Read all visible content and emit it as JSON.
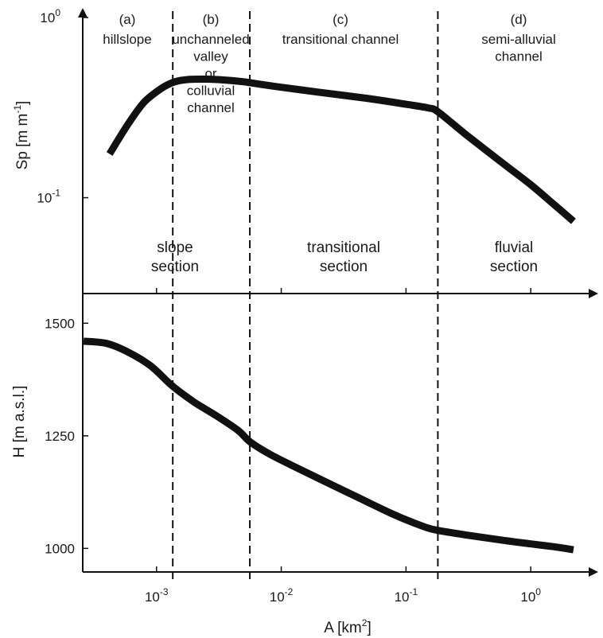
{
  "chart_data": {
    "type": "line",
    "xlabel": {
      "base": "A [km",
      "sup": "2",
      "end": "]"
    },
    "xscale": "log",
    "xticks": [
      {
        "base": "10",
        "exp": "-3"
      },
      {
        "base": "10",
        "exp": "-2"
      },
      {
        "base": "10",
        "exp": "-1"
      },
      {
        "base": "10",
        "exp": "0"
      }
    ],
    "xlim": [
      0.00026,
      3.0
    ],
    "boundaries": [
      0.00135,
      0.0056,
      0.18
    ],
    "zones": [
      {
        "id": "(a)",
        "lines": [
          "hillslope"
        ]
      },
      {
        "id": "(b)",
        "lines": [
          "unchanneled",
          "valley",
          "or",
          "colluvial",
          "channel"
        ]
      },
      {
        "id": "(c)",
        "lines": [
          "transitional channel"
        ]
      },
      {
        "id": "(d)",
        "lines": [
          "semi-alluvial",
          "channel"
        ]
      }
    ],
    "sections": [
      {
        "lines": [
          "slope",
          "section"
        ]
      },
      {
        "lines": [
          "transitional",
          "section"
        ]
      },
      {
        "lines": [
          "fluvial",
          "section"
        ]
      }
    ],
    "top": {
      "ylabel": "Sp [m m",
      "ylabel_sup": "-1",
      "ylabel_end": "]",
      "yscale": "log",
      "yticks": [
        {
          "base": "10",
          "exp": "0"
        },
        {
          "base": "10",
          "exp": "-1"
        }
      ],
      "ylim_log10": [
        -1.47,
        0.0
      ],
      "series": [
        {
          "x": [
            0.00042,
            0.0006,
            0.0008,
            0.0011,
            0.0014,
            0.0018,
            0.0025,
            0.0035,
            0.005,
            0.0056,
            0.01,
            0.02,
            0.05,
            0.1,
            0.15,
            0.18,
            0.3,
            0.6,
            1.0,
            1.5,
            2.2
          ],
          "y": [
            0.175,
            0.26,
            0.34,
            0.405,
            0.44,
            0.453,
            0.455,
            0.45,
            0.44,
            0.435,
            0.41,
            0.385,
            0.355,
            0.33,
            0.315,
            0.3,
            0.225,
            0.155,
            0.118,
            0.093,
            0.074
          ]
        }
      ]
    },
    "bottom": {
      "ylabel": "H [m a.s.l.]",
      "yscale": "linear",
      "yticks": [
        1500,
        1250,
        1000
      ],
      "ylim": [
        960,
        1550
      ],
      "series": [
        {
          "x": [
            0.00026,
            0.0004,
            0.0006,
            0.0009,
            0.00135,
            0.002,
            0.003,
            0.0045,
            0.0056,
            0.008,
            0.012,
            0.02,
            0.04,
            0.08,
            0.14,
            0.18,
            0.3,
            0.6,
            1.0,
            1.5,
            2.2
          ],
          "y": [
            1460,
            1455,
            1435,
            1405,
            1360,
            1325,
            1295,
            1262,
            1237,
            1210,
            1185,
            1155,
            1115,
            1075,
            1048,
            1040,
            1030,
            1018,
            1010,
            1004,
            997
          ]
        }
      ]
    }
  }
}
